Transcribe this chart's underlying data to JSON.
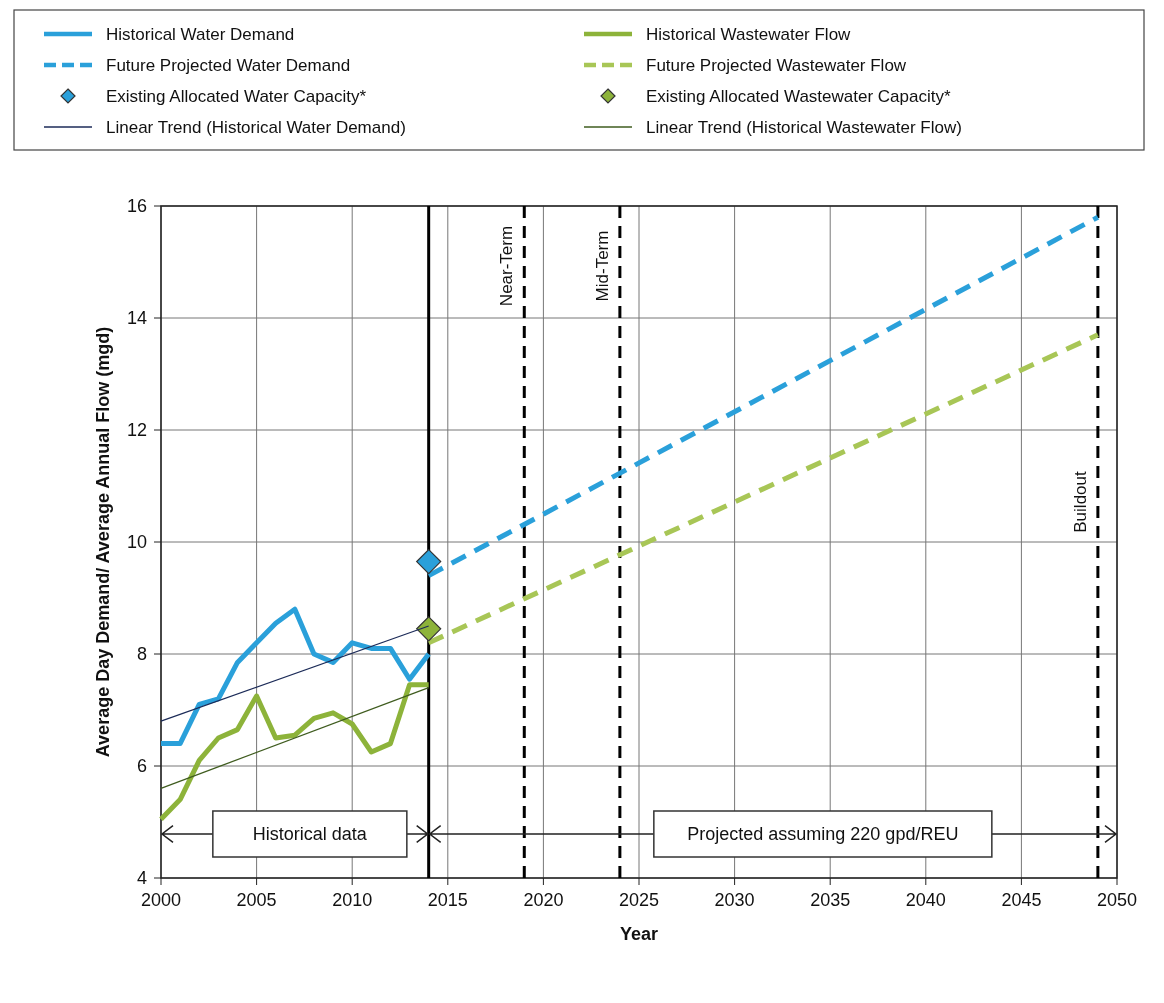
{
  "chart_data": {
    "type": "line",
    "xlabel": "Year",
    "ylabel": "Average Day Demand/ Average Annual Flow (mgd)",
    "xlim": [
      2000,
      2050
    ],
    "xticks": [
      2000,
      2005,
      2010,
      2015,
      2020,
      2025,
      2030,
      2035,
      2040,
      2045,
      2050
    ],
    "ylim": [
      4,
      16
    ],
    "yticks": [
      4,
      6,
      8,
      10,
      12,
      14,
      16
    ],
    "grid": true,
    "legend": "top",
    "marker": "none",
    "series": [
      {
        "name": "Historical Water Demand",
        "line_style": "solid",
        "color": "#2aa0da",
        "x": [
          2000,
          2001,
          2002,
          2003,
          2004,
          2005,
          2006,
          2007,
          2008,
          2009,
          2010,
          2011,
          2012,
          2013,
          2014
        ],
        "values": [
          6.4,
          6.4,
          7.1,
          7.2,
          7.85,
          8.2,
          8.55,
          8.8,
          8.0,
          7.85,
          8.2,
          8.1,
          8.1,
          7.55,
          8.0
        ]
      },
      {
        "name": "Historical Wastewater Flow",
        "line_style": "solid",
        "color": "#8db33a",
        "x": [
          2000,
          2001,
          2002,
          2003,
          2004,
          2005,
          2006,
          2007,
          2008,
          2009,
          2010,
          2011,
          2012,
          2013,
          2014
        ],
        "values": [
          5.05,
          5.4,
          6.1,
          6.5,
          6.65,
          7.25,
          6.5,
          6.55,
          6.85,
          6.95,
          6.75,
          6.25,
          6.4,
          7.45,
          7.45
        ]
      },
      {
        "name": "Future Projected Water Demand",
        "line_style": "dashed",
        "color": "#2aa0da",
        "x": [
          2014,
          2049
        ],
        "values": [
          9.4,
          15.8
        ]
      },
      {
        "name": "Future Projected Wastewater Flow",
        "line_style": "dashed",
        "color": "#a8c656",
        "x": [
          2014,
          2049
        ],
        "values": [
          8.2,
          13.7
        ]
      },
      {
        "name": "Existing Allocated Water Capacity*",
        "type": "scatter",
        "marker": "diamond",
        "color": "#2aa0da",
        "x": [
          2014
        ],
        "values": [
          9.65
        ]
      },
      {
        "name": "Existing Allocated Wastewater Capacity*",
        "type": "scatter",
        "marker": "diamond",
        "color": "#8db33a",
        "x": [
          2014
        ],
        "values": [
          8.45
        ]
      },
      {
        "name": "Linear Trend (Historical Water Demand)",
        "line_style": "solid",
        "color": "#1c2b58",
        "x": [
          2000,
          2014
        ],
        "values": [
          6.8,
          8.5
        ]
      },
      {
        "name": "Linear Trend (Historical Wastewater Flow)",
        "line_style": "solid",
        "color": "#3f5c1f",
        "x": [
          2000,
          2014
        ],
        "values": [
          5.6,
          7.4
        ]
      }
    ],
    "ref_lines": [
      {
        "axis": "x",
        "value": 2014,
        "color": "#000000",
        "line_style": "solid"
      },
      {
        "axis": "x",
        "value": 2019,
        "label": "Near-Term",
        "color": "#000000",
        "line_style": "dashed"
      },
      {
        "axis": "x",
        "value": 2024,
        "label": "Mid-Term",
        "color": "#000000",
        "line_style": "dashed"
      },
      {
        "axis": "x",
        "value": 2049,
        "label": "Buildout",
        "color": "#000000",
        "line_style": "dashed"
      }
    ],
    "annotations": [
      "Historical data",
      "Projected assuming 220 gpd/REU"
    ]
  }
}
